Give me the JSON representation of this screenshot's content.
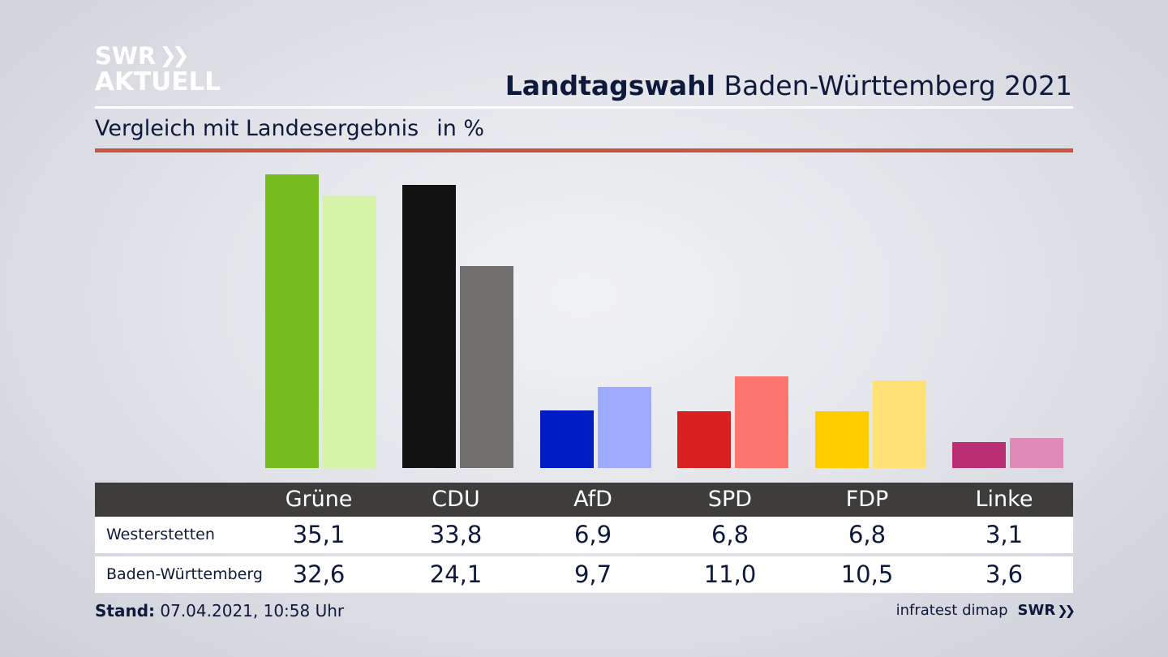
{
  "logo": {
    "line1": "SWR",
    "line2": "AKTUELL"
  },
  "header": {
    "title_bold": "Landtagswahl",
    "title_rest": "Baden-Württemberg 2021",
    "subtitle": "Vergleich mit Landesergebnis",
    "unit": "in %"
  },
  "chart_data": {
    "type": "bar",
    "categories": [
      "Grüne",
      "CDU",
      "AfD",
      "SPD",
      "FDP",
      "Linke"
    ],
    "series": [
      {
        "name": "Westerstetten",
        "values": [
          35.1,
          33.8,
          6.9,
          6.8,
          6.8,
          3.1
        ],
        "colors": [
          "#77bc1f",
          "#121212",
          "#001cc3",
          "#d92020",
          "#ffcc00",
          "#bb2f74"
        ]
      },
      {
        "name": "Baden-Württemberg",
        "values": [
          32.6,
          24.1,
          9.7,
          11.0,
          10.5,
          3.6
        ],
        "colors": [
          "#d6f3a8",
          "#706f6d",
          "#9daaff",
          "#ff766f",
          "#ffe175",
          "#de8bb8"
        ]
      }
    ],
    "ylim": [
      0,
      35.1
    ],
    "grid": false
  },
  "table": {
    "headers": [
      "Grüne",
      "CDU",
      "AfD",
      "SPD",
      "FDP",
      "Linke"
    ],
    "rows": [
      {
        "label": "Westerstetten",
        "values": [
          "35,1",
          "33,8",
          "6,9",
          "6,8",
          "6,8",
          "3,1"
        ]
      },
      {
        "label": "Baden-Württemberg",
        "values": [
          "32,6",
          "24,1",
          "9,7",
          "11,0",
          "10,5",
          "3,6"
        ]
      }
    ]
  },
  "footer": {
    "stand_label": "Stand:",
    "stand_value": "07.04.2021, 10:58 Uhr",
    "source": "infratest dimap",
    "brand": "SWR"
  }
}
